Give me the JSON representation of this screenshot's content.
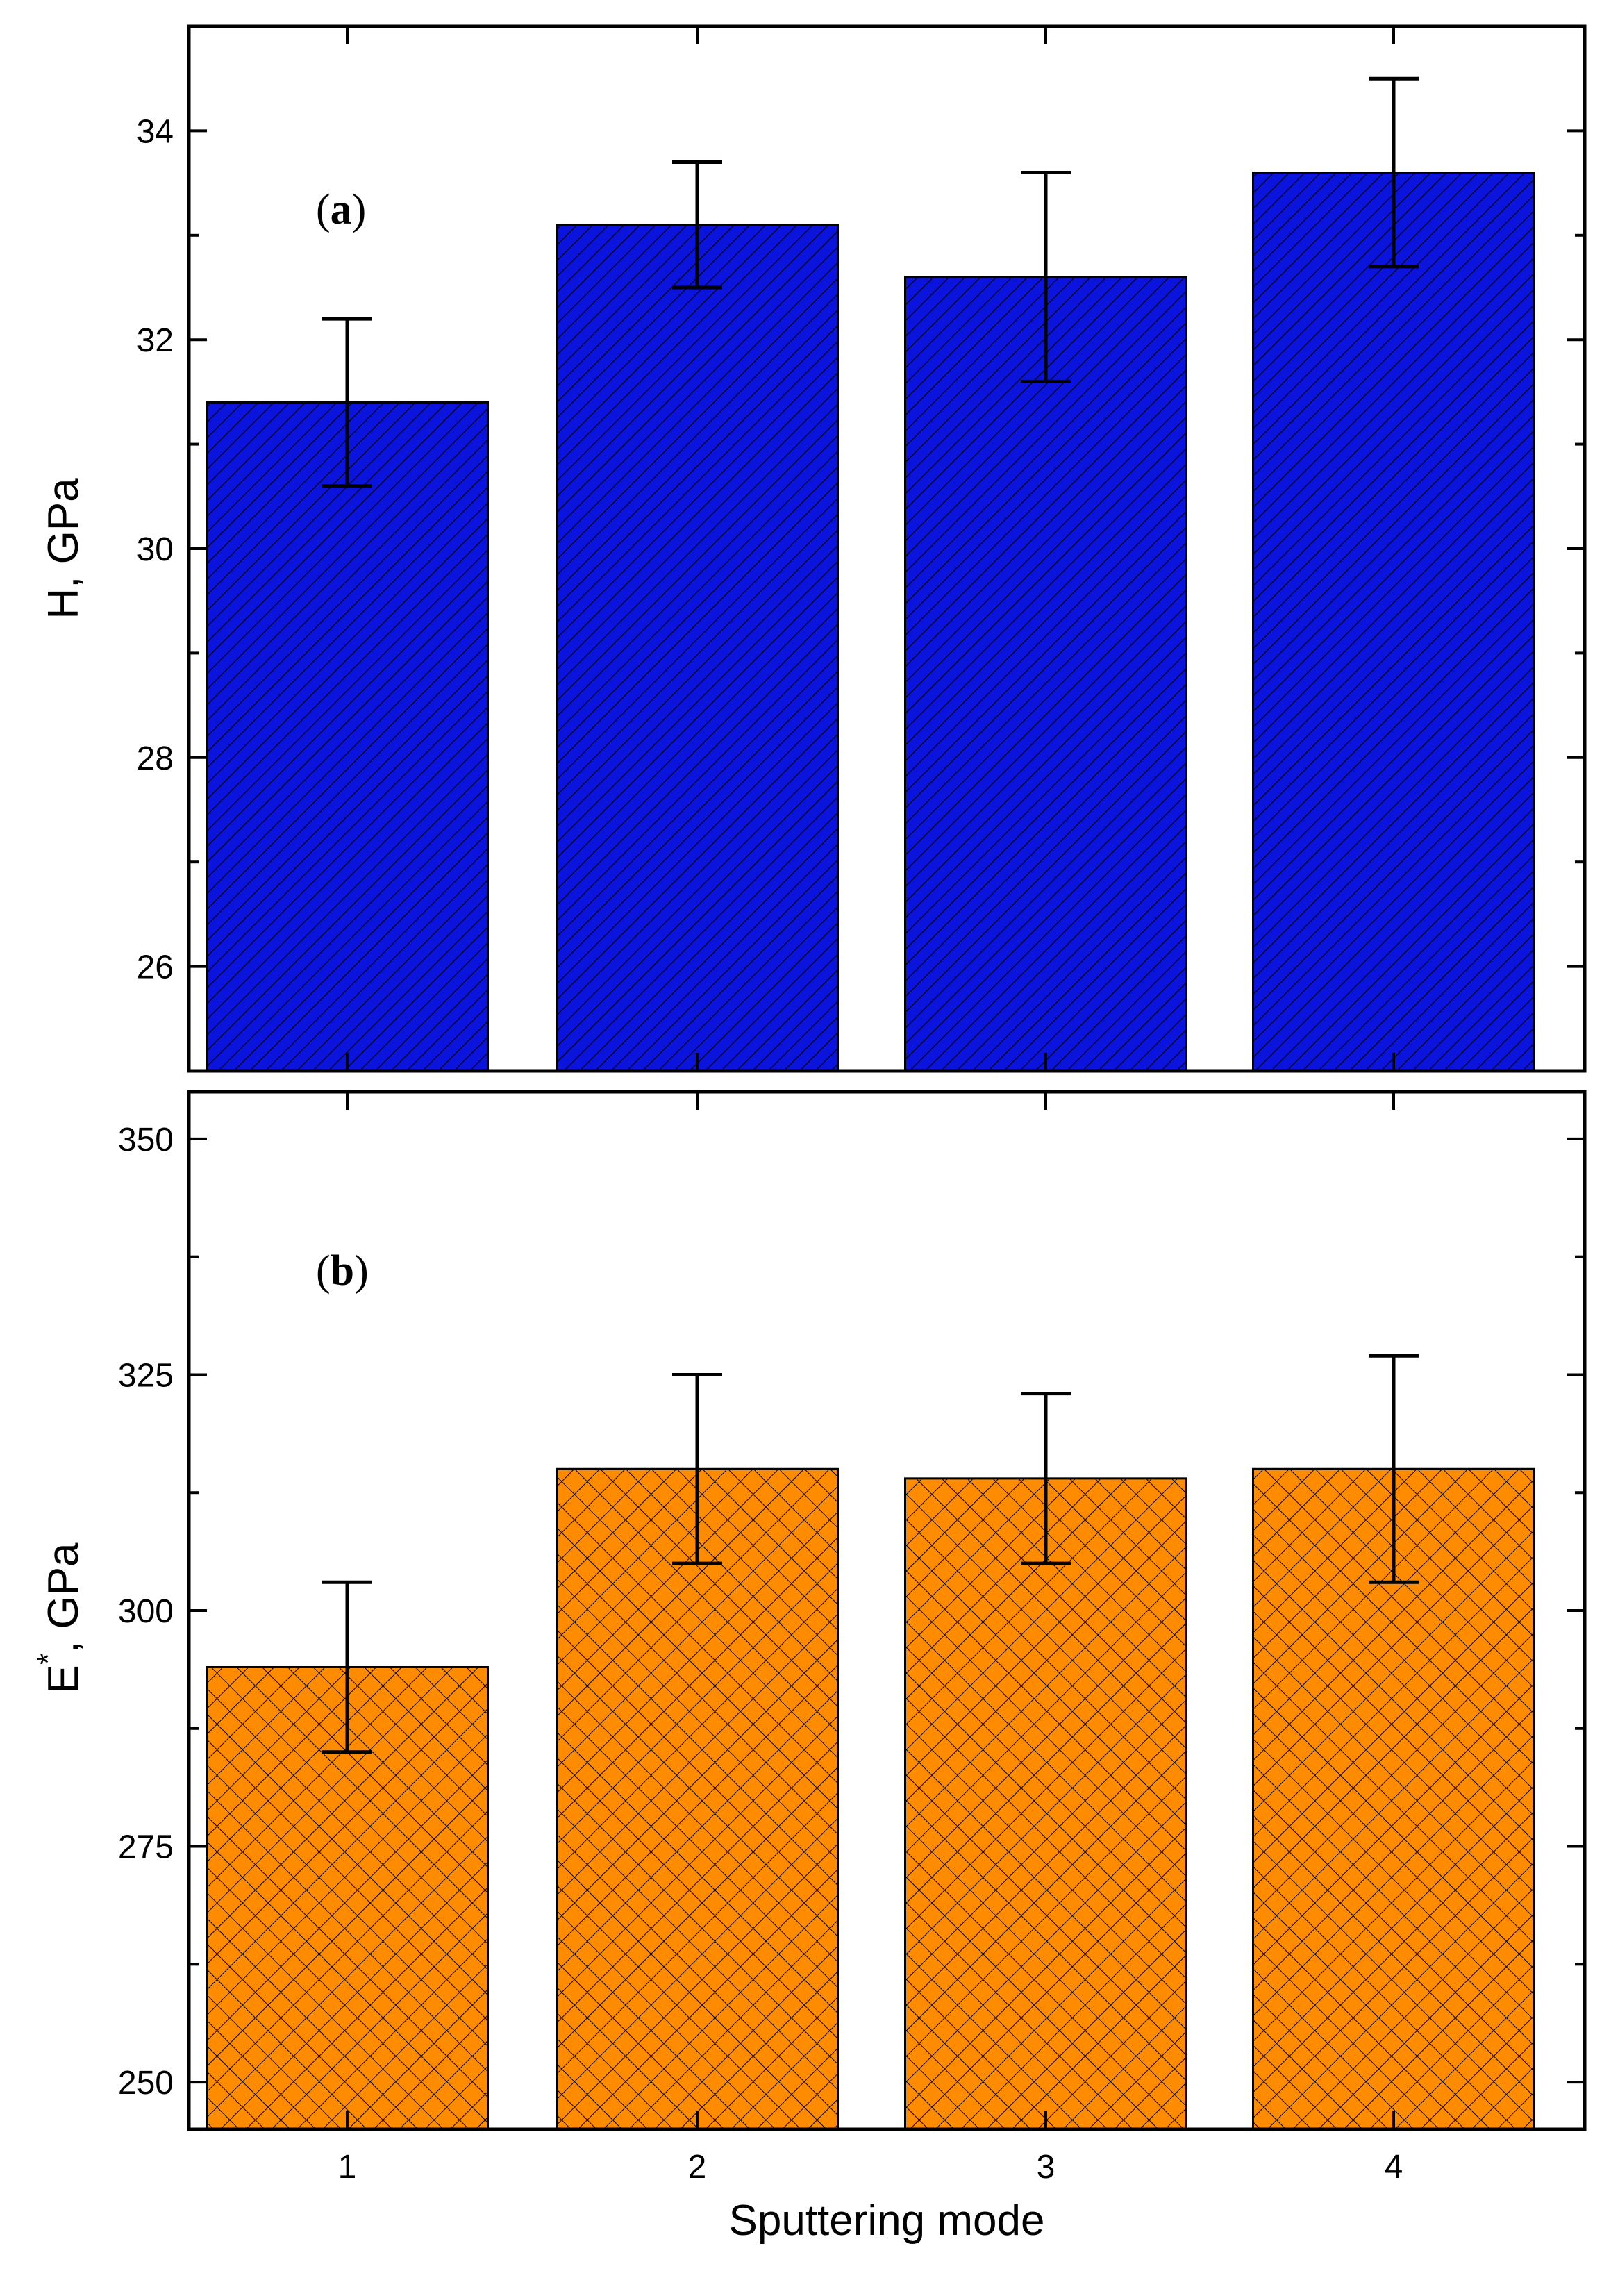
{
  "chart_data": [
    {
      "type": "bar",
      "panel_label": "a",
      "categories": [
        "1",
        "2",
        "3",
        "4"
      ],
      "values": [
        31.4,
        33.1,
        32.6,
        33.6
      ],
      "errors": [
        0.8,
        0.6,
        1.0,
        0.9
      ],
      "ylabel": "H, GPa",
      "ylim": [
        25,
        35
      ],
      "yticks": [
        26,
        28,
        30,
        32,
        34
      ],
      "minor_step": 1,
      "fill": "#0a14dc",
      "pattern": "diagonal-hatch"
    },
    {
      "type": "bar",
      "panel_label": "b",
      "categories": [
        "1",
        "2",
        "3",
        "4"
      ],
      "values": [
        294,
        315,
        314,
        315
      ],
      "errors": [
        9,
        10,
        9,
        12
      ],
      "ylabel_main": "E",
      "ylabel_sup": "*",
      "ylabel_rest": ", GPa",
      "ylim": [
        245,
        355
      ],
      "yticks": [
        250,
        275,
        300,
        325,
        350
      ],
      "minor_step": 12.5,
      "fill": "#ff8c00",
      "pattern": "crosshatch"
    }
  ],
  "xlabel": "Sputtering mode"
}
